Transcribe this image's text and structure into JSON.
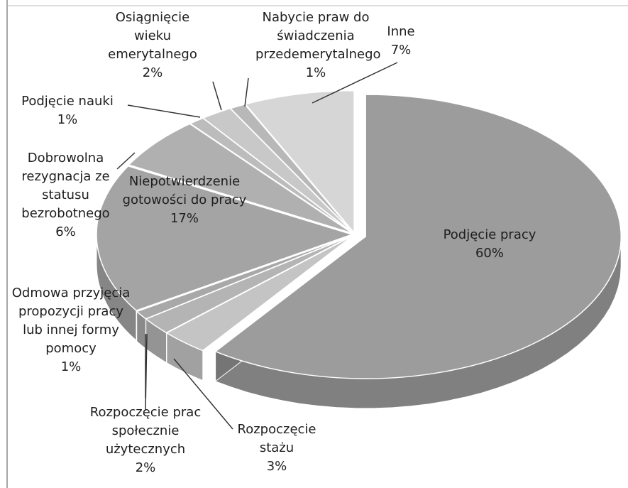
{
  "chart_data": {
    "type": "pie",
    "categories": [
      "Podjęcie pracy",
      "Rozpoczęcie stażu",
      "Rozpoczęcie prac społecznie użytecznych",
      "Odmowa przyjęcia propozycji pracy lub innej formy pomocy",
      "Niepotwierdzenie gotowości do pracy",
      "Dobrowolna rezygnacja ze statusu bezrobotnego",
      "Podjęcie nauki",
      "Osiągnięcie wieku emerytalnego",
      "Nabycie praw do świadczenia przedemerytalnego",
      "Inne"
    ],
    "values": [
      60,
      3,
      2,
      1,
      17,
      6,
      1,
      2,
      1,
      7
    ],
    "value_labels": [
      "60%",
      "3%",
      "2%",
      "1%",
      "17%",
      "6%",
      "1%",
      "2%",
      "1%",
      "7%"
    ],
    "colors": [
      "#9c9c9c",
      "#c4c4c4",
      "#b4b4b4",
      "#a8a8a8",
      "#a4a4a4",
      "#b0b0b0",
      "#bcbcbc",
      "#c8c8c8",
      "#b8b8b8",
      "#d6d6d6"
    ]
  }
}
